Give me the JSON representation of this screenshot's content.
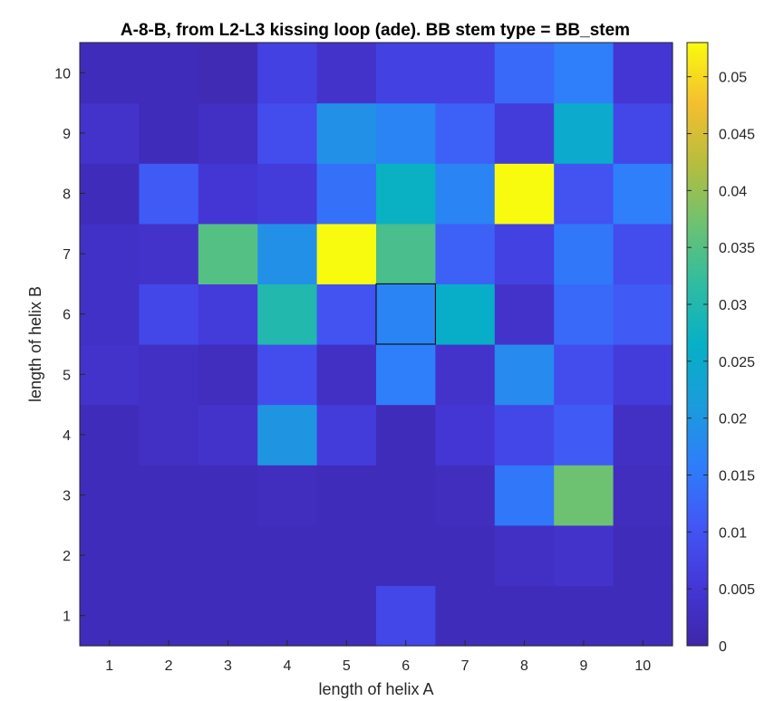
{
  "chart_data": {
    "type": "heatmap",
    "title": "A-8-B, from L2-L3 kissing loop (ade). BB stem type = BB_stem",
    "xlabel": "length of helix A",
    "ylabel": "length of helix B",
    "x": [
      "1",
      "2",
      "3",
      "4",
      "5",
      "6",
      "7",
      "8",
      "9",
      "10"
    ],
    "y": [
      "1",
      "2",
      "3",
      "4",
      "5",
      "6",
      "7",
      "8",
      "9",
      "10"
    ],
    "values": [
      [
        0.002,
        0.002,
        0.002,
        0.002,
        0.002,
        0.008,
        0.002,
        0.002,
        0.002,
        0.002
      ],
      [
        0.002,
        0.002,
        0.002,
        0.002,
        0.002,
        0.002,
        0.002,
        0.003,
        0.004,
        0.002
      ],
      [
        0.002,
        0.002,
        0.002,
        0.0025,
        0.002,
        0.002,
        0.0025,
        0.015,
        0.037,
        0.0025
      ],
      [
        0.002,
        0.003,
        0.004,
        0.02,
        0.006,
        0.002,
        0.005,
        0.008,
        0.011,
        0.003
      ],
      [
        0.004,
        0.003,
        0.0025,
        0.009,
        0.003,
        0.016,
        0.004,
        0.018,
        0.009,
        0.006
      ],
      [
        0.0035,
        0.008,
        0.006,
        0.03,
        0.01,
        0.017,
        0.026,
        0.004,
        0.013,
        0.011
      ],
      [
        0.0035,
        0.004,
        0.035,
        0.019,
        0.053,
        0.034,
        0.012,
        0.007,
        0.015,
        0.009
      ],
      [
        0.002,
        0.011,
        0.005,
        0.006,
        0.014,
        0.027,
        0.017,
        0.053,
        0.01,
        0.016
      ],
      [
        0.004,
        0.002,
        0.003,
        0.009,
        0.019,
        0.017,
        0.012,
        0.006,
        0.025,
        0.008
      ],
      [
        0.002,
        0.002,
        0.0015,
        0.007,
        0.004,
        0.007,
        0.007,
        0.013,
        0.016,
        0.005
      ]
    ],
    "highlight_cell": {
      "x": "6",
      "y": "6"
    },
    "colorbar": {
      "colormap": "parula",
      "range": [
        0,
        0.053
      ],
      "ticks": [
        0,
        0.005,
        0.01,
        0.015,
        0.02,
        0.025,
        0.03,
        0.035,
        0.04,
        0.045,
        0.05
      ],
      "tick_labels": [
        "0",
        "0.005",
        "0.01",
        "0.015",
        "0.02",
        "0.025",
        "0.03",
        "0.035",
        "0.04",
        "0.045",
        "0.05"
      ]
    }
  }
}
